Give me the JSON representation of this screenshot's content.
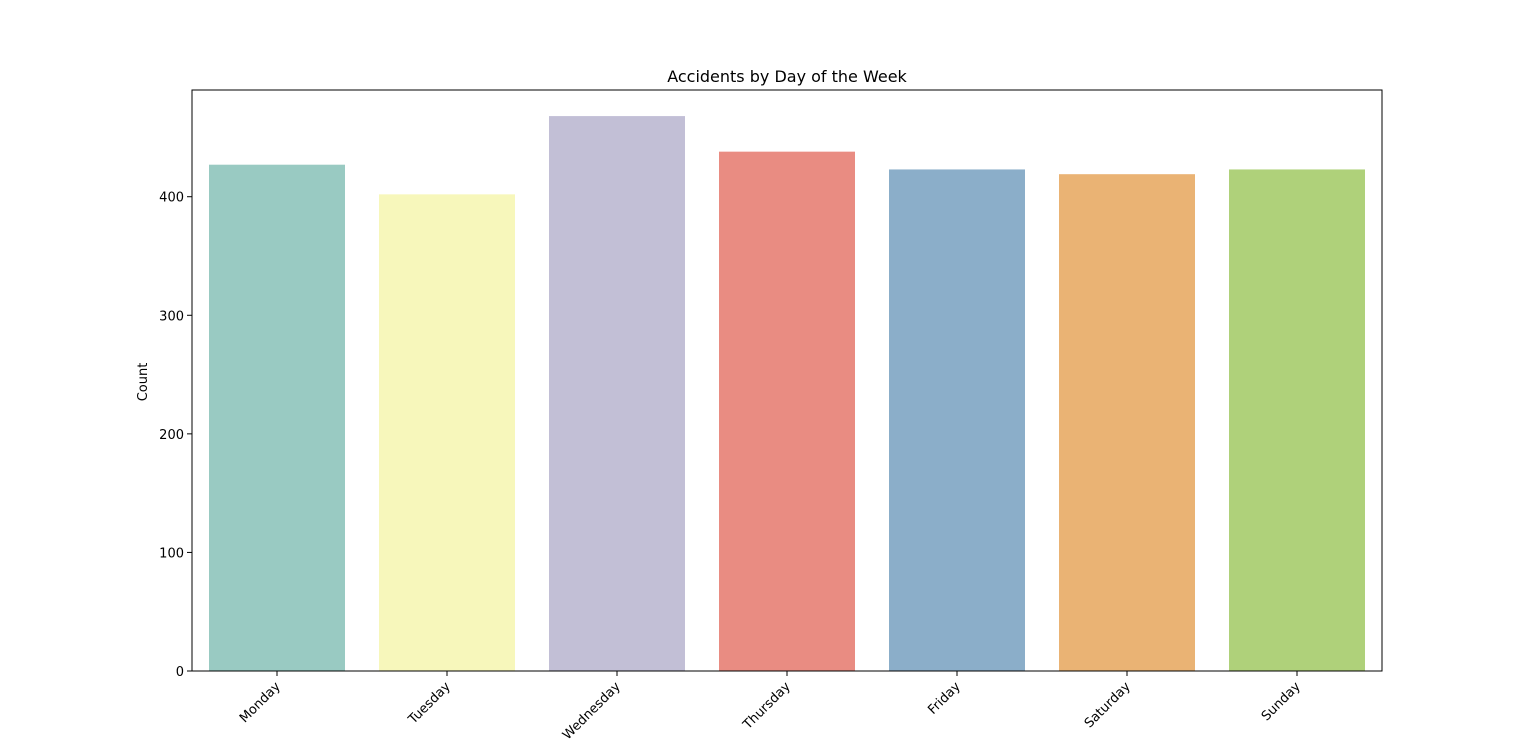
{
  "chart_data": {
    "type": "bar",
    "title": "Accidents by Day of the Week",
    "xlabel": "",
    "ylabel": "Count",
    "categories": [
      "Monday",
      "Tuesday",
      "Wednesday",
      "Thursday",
      "Friday",
      "Saturday",
      "Sunday"
    ],
    "values": [
      427,
      402,
      468,
      438,
      423,
      419,
      423
    ],
    "colors": [
      "#99cac2",
      "#f7f7bb",
      "#c2bfd6",
      "#e98c82",
      "#8baec9",
      "#eab374",
      "#afd17a"
    ],
    "ylim": [
      0,
      490
    ],
    "yticks": [
      0,
      100,
      200,
      300,
      400
    ],
    "grid": false,
    "legend": "none"
  }
}
